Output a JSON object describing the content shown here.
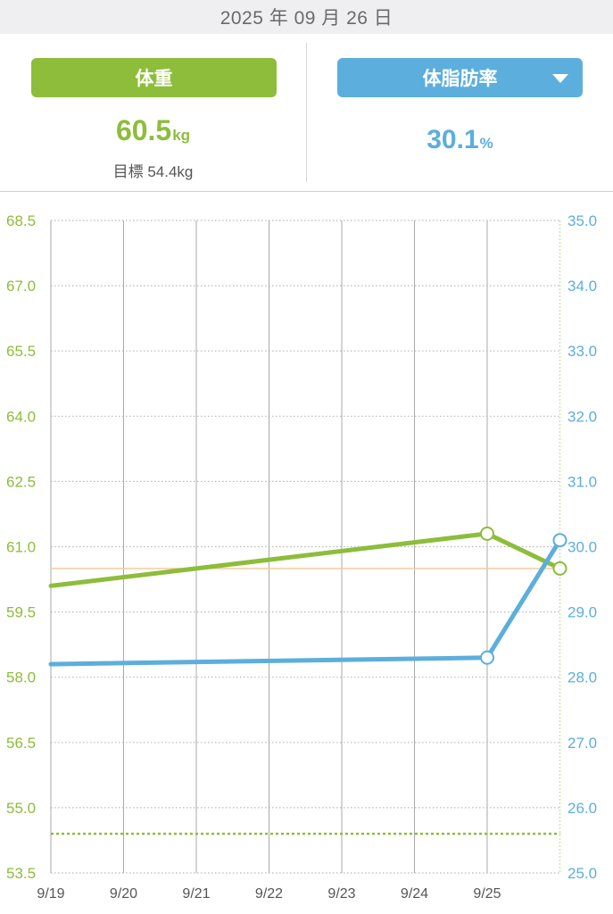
{
  "header": {
    "date": "2025 年 09 月 26 日"
  },
  "weight_panel": {
    "tab_label": "体重",
    "value": "60.5",
    "unit": "kg",
    "target_label": "目標",
    "target_value": "54.4kg"
  },
  "bodyfat_panel": {
    "tab_label": "体脂肪率",
    "value": "30.1",
    "unit": "%"
  },
  "colors": {
    "weight": "#8dbd3a",
    "bodyfat": "#5caedd",
    "reference": "#f5cba0",
    "grid": "#b9b9b9"
  },
  "chart_data": {
    "type": "line",
    "x": [
      "9/19",
      "9/20",
      "9/21",
      "9/22",
      "9/23",
      "9/24",
      "9/25",
      "9/26"
    ],
    "x_tick_labels": [
      "9/19",
      "9/20",
      "9/21",
      "9/22",
      "9/23",
      "9/24",
      "9/25"
    ],
    "y_left": {
      "range": [
        53.5,
        68.5
      ],
      "ticks": [
        "68.5",
        "67.0",
        "65.5",
        "64.0",
        "62.5",
        "61.0",
        "59.5",
        "58.0",
        "56.5",
        "55.0",
        "53.5"
      ]
    },
    "y_right": {
      "range": [
        25.0,
        35.0
      ],
      "ticks": [
        "35.0",
        "34.0",
        "33.0",
        "32.0",
        "31.0",
        "30.0",
        "29.0",
        "28.0",
        "27.0",
        "26.0",
        "25.0"
      ]
    },
    "series": [
      {
        "key": "weight",
        "axis": "left",
        "line_from_before": {
          "x": "9/19",
          "y": 60.1
        },
        "points": [
          {
            "x": "9/25",
            "y": 61.3
          },
          {
            "x": "9/26",
            "y": 60.5
          }
        ]
      },
      {
        "key": "bodyfat",
        "axis": "right",
        "line_from_before": {
          "x": "9/19",
          "y": 28.2
        },
        "points": [
          {
            "x": "9/25",
            "y": 28.3
          },
          {
            "x": "9/26",
            "y": 30.1
          }
        ]
      }
    ],
    "reference_lines": [
      {
        "key": "target",
        "axis": "left",
        "y": 54.4,
        "style": "dotted",
        "color": "#8dbd3a"
      },
      {
        "key": "current",
        "axis": "left",
        "y": 60.5,
        "style": "solid",
        "color": "#f5cba0"
      }
    ],
    "grid": true
  }
}
